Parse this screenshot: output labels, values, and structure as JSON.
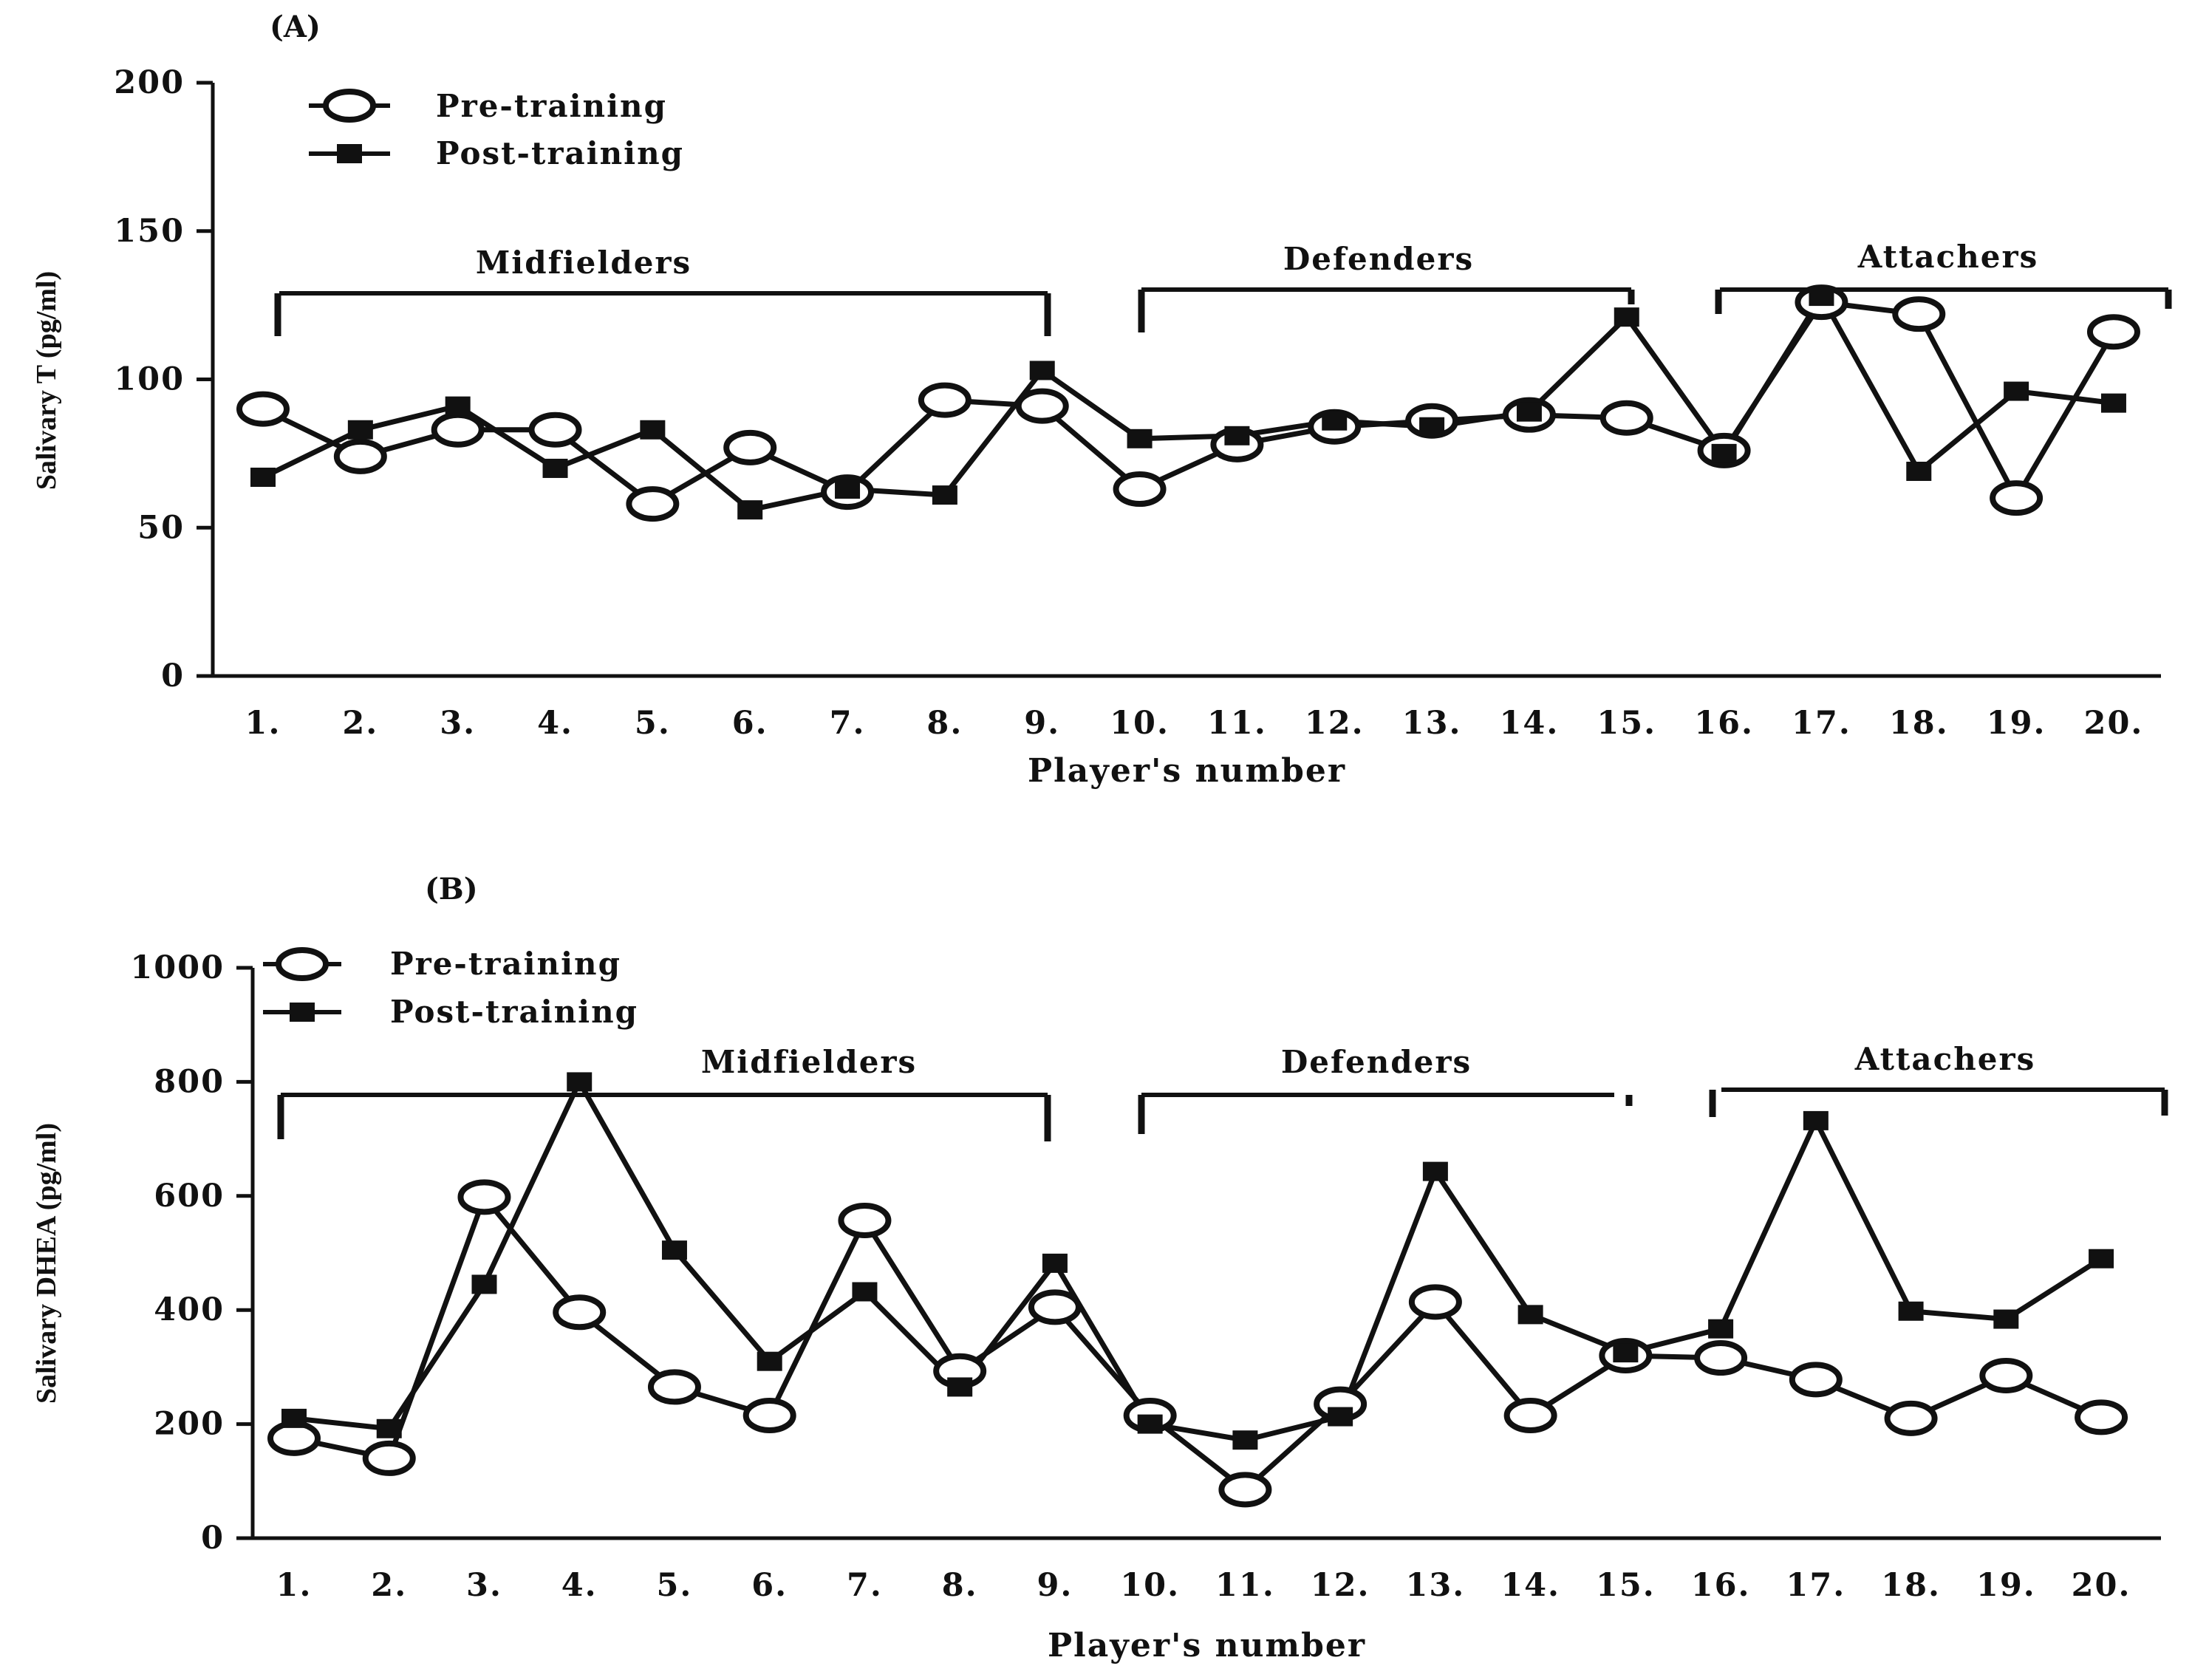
{
  "chart_data": [
    {
      "type": "line",
      "panel_label": "(A)",
      "xlabel": "Player's number",
      "ylabel": "Salivary T (pg/ml)",
      "ylim": [
        0,
        200
      ],
      "yticks": [
        0,
        50,
        100,
        150,
        200
      ],
      "categories": [
        "1.",
        "2.",
        "3.",
        "4.",
        "5.",
        "6.",
        "7.",
        "8.",
        "9.",
        "10.",
        "11.",
        "12.",
        "13.",
        "14.",
        "15.",
        "16.",
        "17.",
        "18.",
        "19.",
        "20."
      ],
      "legend_position": "top-left",
      "series": [
        {
          "name": "Pre-training",
          "marker": "open-circle",
          "values": [
            90,
            74,
            83,
            83,
            58,
            77,
            62,
            93,
            91,
            63,
            78,
            84,
            86,
            88,
            87,
            76,
            126,
            122,
            60,
            116
          ]
        },
        {
          "name": "Post-training",
          "marker": "filled-square",
          "values": [
            67,
            83,
            91,
            70,
            83,
            56,
            63,
            61,
            103,
            80,
            81,
            86,
            84,
            89,
            121,
            75,
            128,
            69,
            96,
            92
          ]
        }
      ],
      "groups": [
        {
          "label": "Midfielders",
          "from": 1,
          "to": 9
        },
        {
          "label": "Defenders",
          "from": 10,
          "to": 15
        },
        {
          "label": "Attachers",
          "from": 16,
          "to": 20
        }
      ]
    },
    {
      "type": "line",
      "panel_label": "(B)",
      "xlabel": "Player's number",
      "ylabel": "Salivary DHEA (pg/ml)",
      "ylim": [
        0,
        1000
      ],
      "yticks": [
        0,
        200,
        400,
        600,
        800,
        1000
      ],
      "categories": [
        "1.",
        "2.",
        "3.",
        "4.",
        "5.",
        "6.",
        "7.",
        "8.",
        "9.",
        "10.",
        "11.",
        "12.",
        "13.",
        "14.",
        "15.",
        "16.",
        "17.",
        "18.",
        "19.",
        "20."
      ],
      "legend_position": "top-left",
      "series": [
        {
          "name": "Pre-training",
          "marker": "open-circle",
          "values": [
            175,
            140,
            598,
            396,
            265,
            215,
            557,
            293,
            405,
            215,
            85,
            235,
            414,
            215,
            320,
            316,
            278,
            210,
            285,
            212
          ]
        },
        {
          "name": "Post-training",
          "marker": "filled-square",
          "values": [
            210,
            192,
            445,
            800,
            505,
            310,
            432,
            265,
            482,
            200,
            172,
            213,
            643,
            392,
            325,
            367,
            732,
            398,
            384,
            490
          ]
        }
      ],
      "groups": [
        {
          "label": "Midfielders",
          "from": 1,
          "to": 9
        },
        {
          "label": "Defenders",
          "from": 10,
          "to": 15
        },
        {
          "label": "Attachers",
          "from": 16,
          "to": 20
        }
      ]
    }
  ]
}
